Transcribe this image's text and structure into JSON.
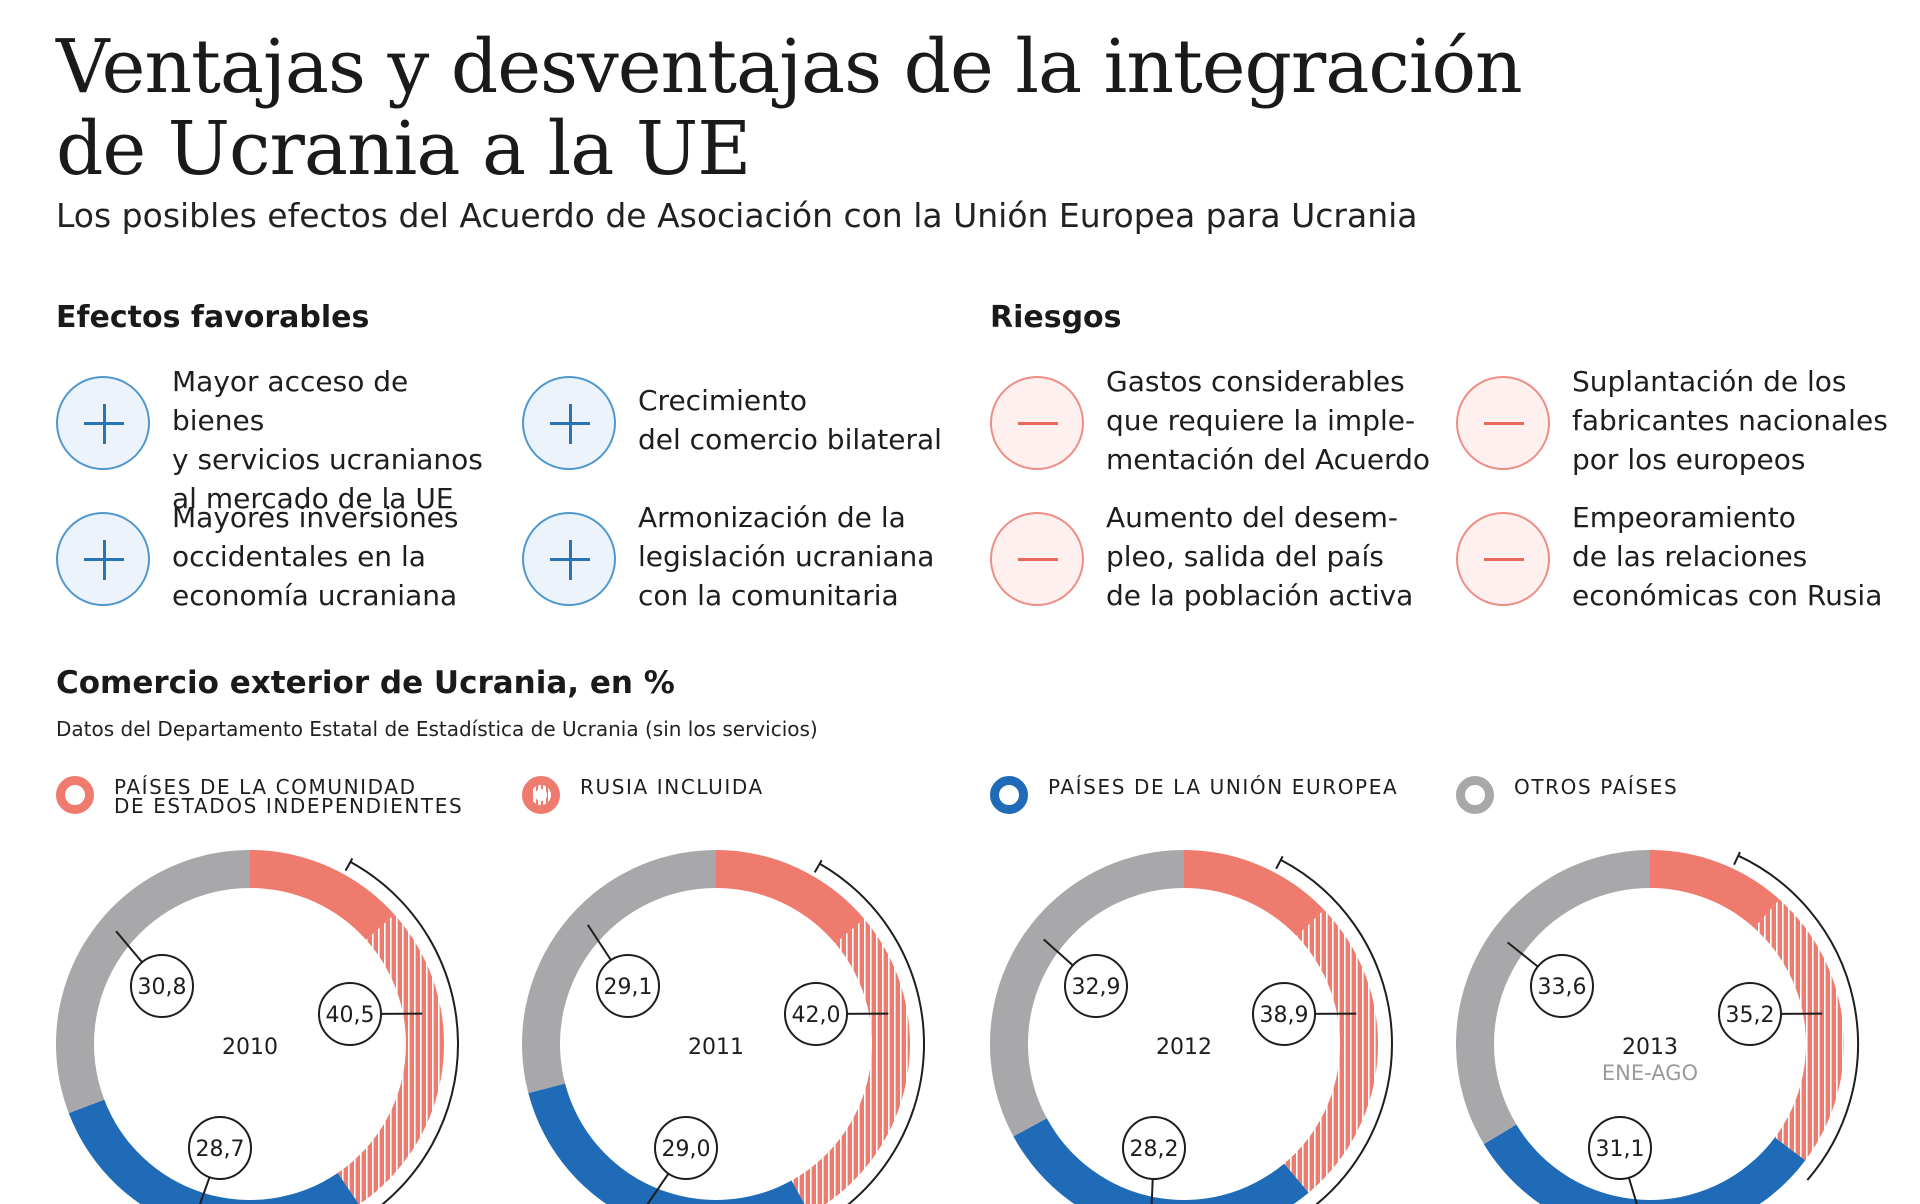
{
  "header": {
    "title_line1": "Ventajas y desventajas de la integración",
    "title_line2": "de Ucrania a la UE",
    "subtitle": "Los posibles efectos del Acuerdo de Asociación con la Unión Europea para Ucrania"
  },
  "favorables": {
    "heading": "Efectos favorables",
    "items": [
      {
        "icon": "plus-icon",
        "text": "Mayor acceso de bienes\ny servicios ucranianos\nal mercado de la UE"
      },
      {
        "icon": "plus-icon",
        "text": "Crecimiento\ndel comercio bilateral"
      },
      {
        "icon": "plus-icon",
        "text": "Mayores inversiones\noccidentales en la\neconomía ucraniana"
      },
      {
        "icon": "plus-icon",
        "text": "Armonización de la\nlegislación ucraniana\ncon la comunitaria"
      }
    ]
  },
  "riesgos": {
    "heading": "Riesgos",
    "items": [
      {
        "icon": "minus-icon",
        "text": "Gastos considerables\nque requiere la imple-\nmentación del Acuerdo"
      },
      {
        "icon": "minus-icon",
        "text": "Suplantación de los\nfabricantes nacionales\npor los europeos"
      },
      {
        "icon": "minus-icon",
        "text": "Aumento del desem-\npleo, salida del país\nde la población activa"
      },
      {
        "icon": "minus-icon",
        "text": "Empeoramiento\nde las relaciones\neconómicas con Rusia"
      }
    ]
  },
  "colors": {
    "cei": "#ee7b6d",
    "ue": "#1f6bb7",
    "otros": "#a8a8ab",
    "text": "#1e1e1e",
    "muted": "#9a9a9a"
  },
  "chart_data": {
    "type": "pie",
    "variant": "donut",
    "title": "Comercio exterior de Ucrania, en %",
    "source": "Datos del Departamento Estatal de Estadística de Ucrania (sin los servicios)",
    "legend": [
      {
        "key": "cei",
        "label_line1": "Países de la Comunidad",
        "label_line2": "de Estados Independientes"
      },
      {
        "key": "rusia",
        "label_line1": "Rusia incluida",
        "label_line2": ""
      },
      {
        "key": "ue",
        "label_line1": "Países de la Unión Europea",
        "label_line2": ""
      },
      {
        "key": "otros",
        "label_line1": "Otros países",
        "label_line2": ""
      }
    ],
    "series": [
      {
        "year": "2010",
        "note": "",
        "cei": 40.5,
        "ue": 28.7,
        "otros": 30.8,
        "cei_label": "40,5",
        "ue_label": "28,7",
        "otros_label": "30,8"
      },
      {
        "year": "2011",
        "note": "",
        "cei": 42.0,
        "ue": 29.0,
        "otros": 29.1,
        "cei_label": "42,0",
        "ue_label": "29,0",
        "otros_label": "29,1"
      },
      {
        "year": "2012",
        "note": "",
        "cei": 38.9,
        "ue": 28.2,
        "otros": 32.9,
        "cei_label": "38,9",
        "ue_label": "28,2",
        "otros_label": "32,9"
      },
      {
        "year": "2013",
        "note": "ENE-AGO",
        "cei": 35.2,
        "ue": 31.1,
        "otros": 33.6,
        "cei_label": "35,2",
        "ue_label": "31,1",
        "otros_label": "33,6"
      }
    ]
  }
}
